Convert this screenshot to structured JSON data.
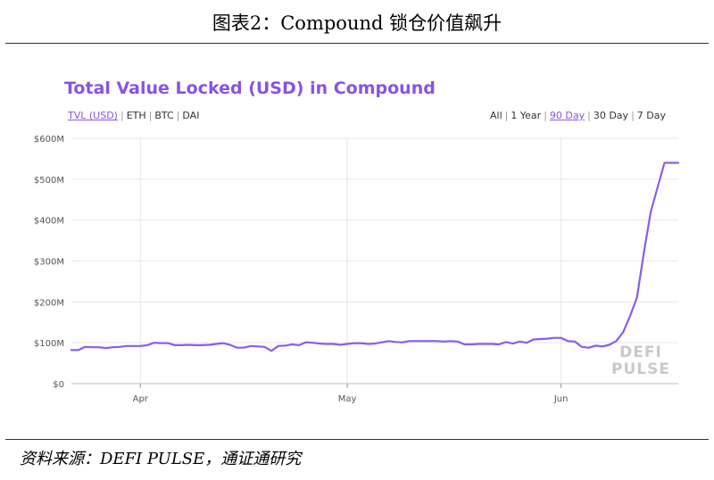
{
  "figure": {
    "title": "图表2：Compound 锁仓价值飙升",
    "source": "资料来源：DEFI PULSE，通证通研究"
  },
  "chart": {
    "title": "Total Value Locked (USD) in Compound",
    "asset_tabs": [
      "TVL (USD)",
      "ETH",
      "BTC",
      "DAI"
    ],
    "range_tabs": [
      "All",
      "1 Year",
      "90 Day",
      "30 Day",
      "7 Day"
    ],
    "active_asset": "TVL (USD)",
    "active_range": "90 Day",
    "watermark": [
      "DEFI",
      "PULSE"
    ]
  },
  "colors": {
    "line": "#8a5cf0",
    "title": "#8a52e6",
    "grid": "#e6e6e6"
  },
  "chart_data": {
    "type": "line",
    "title": "Total Value Locked (USD) in Compound",
    "xlabel": "",
    "ylabel": "",
    "ylim": [
      0,
      600
    ],
    "y_unit": "million USD",
    "yticks": [
      0,
      100,
      200,
      300,
      400,
      500,
      600
    ],
    "ytick_labels": [
      "$0",
      "$100M",
      "$200M",
      "$300M",
      "$400M",
      "$500M",
      "$600M"
    ],
    "x_ticks": [
      {
        "x": 10,
        "label": "Apr"
      },
      {
        "x": 40,
        "label": "May"
      },
      {
        "x": 71,
        "label": "Jun"
      }
    ],
    "xlim": [
      0,
      88
    ],
    "grid": true,
    "series": [
      {
        "x": [
          0,
          1,
          2,
          3,
          4,
          5,
          6,
          7,
          8,
          9,
          10,
          11,
          12,
          13,
          14,
          15,
          16,
          17,
          18,
          19,
          20,
          21,
          22,
          23,
          24,
          25,
          26,
          27,
          28,
          29,
          30,
          31,
          32,
          33,
          34,
          35,
          36,
          37,
          38,
          39,
          40,
          41,
          42,
          43,
          44,
          45,
          46,
          47,
          48,
          49,
          50,
          51,
          52,
          53,
          54,
          55,
          56,
          57,
          58,
          59,
          60,
          61,
          62,
          63,
          64,
          65,
          66,
          67,
          68,
          69,
          70,
          71,
          72,
          73,
          74,
          75,
          76,
          77,
          78,
          79,
          80,
          81,
          82,
          83,
          84,
          85,
          86,
          87,
          88
        ],
        "values": [
          82,
          82,
          90,
          89,
          89,
          87,
          89,
          90,
          92,
          92,
          92,
          94,
          100,
          99,
          99,
          94,
          94,
          95,
          94,
          94,
          95,
          97,
          99,
          95,
          88,
          88,
          92,
          91,
          90,
          80,
          92,
          93,
          96,
          94,
          101,
          100,
          98,
          97,
          97,
          95,
          97,
          99,
          99,
          97,
          98,
          101,
          104,
          102,
          101,
          104,
          104,
          104,
          104,
          104,
          103,
          104,
          103,
          96,
          96,
          97,
          97,
          97,
          96,
          102,
          98,
          103,
          100,
          108,
          109,
          110,
          112,
          112,
          104,
          103,
          90,
          88,
          93,
          91,
          95,
          104,
          126,
          165,
          210,
          320,
          420,
          480,
          540,
          540,
          540
        ]
      }
    ]
  }
}
